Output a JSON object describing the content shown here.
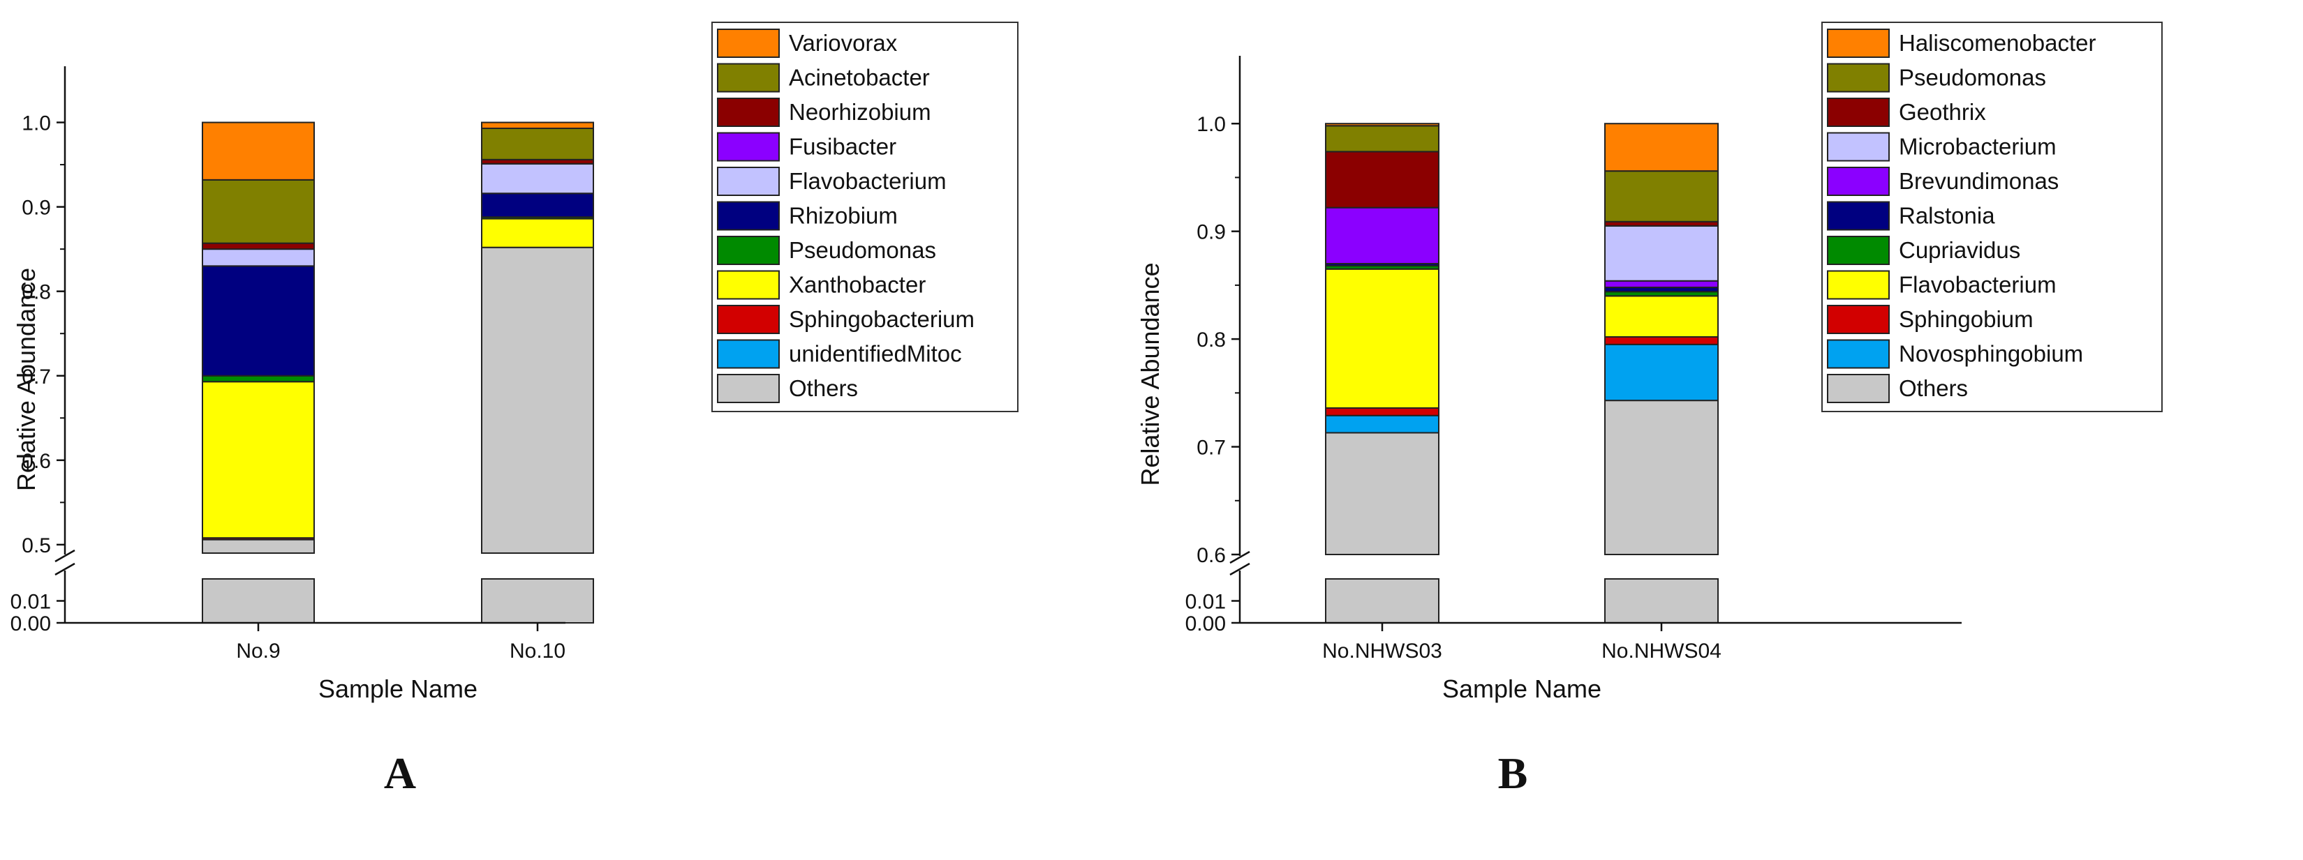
{
  "chart_data": [
    {
      "type": "bar",
      "stacked": true,
      "panel_label": "A",
      "xlabel": "Sample Name",
      "ylabel": "Relative Abundance",
      "categories": [
        "No.9",
        "No.10"
      ],
      "axis_break": {
        "lower_range": [
          0,
          0.02
        ],
        "upper_range": [
          0.49,
          1.05
        ]
      },
      "lower_ticks": [
        0,
        0.01
      ],
      "upper_ticks": [
        0.5,
        0.6,
        0.7,
        0.8,
        0.9,
        1.0
      ],
      "series": [
        {
          "name": "Others",
          "color": "#c8c8c8",
          "values": [
            0.506,
            0.852
          ]
        },
        {
          "name": "unidentifiedMitoc",
          "color": "#00a2f0",
          "values": [
            0.0,
            0.0
          ]
        },
        {
          "name": "Sphingobacterium",
          "color": "#d20000",
          "values": [
            0.002,
            0.0
          ]
        },
        {
          "name": "Xanthobacter",
          "color": "#ffff00",
          "values": [
            0.185,
            0.034
          ]
        },
        {
          "name": "Pseudomonas",
          "color": "#008a00",
          "values": [
            0.007,
            0.002
          ]
        },
        {
          "name": "Rhizobium",
          "color": "#000080",
          "values": [
            0.13,
            0.028
          ]
        },
        {
          "name": "Flavobacterium",
          "color": "#c2c2ff",
          "values": [
            0.02,
            0.035
          ]
        },
        {
          "name": "Fusibacter",
          "color": "#8b00ff",
          "values": [
            0.0,
            0.0
          ]
        },
        {
          "name": "Neorhizobium",
          "color": "#8b0000",
          "values": [
            0.007,
            0.005
          ]
        },
        {
          "name": "Acinetobacter",
          "color": "#808000",
          "values": [
            0.075,
            0.037
          ]
        },
        {
          "name": "Variovorax",
          "color": "#ff8000",
          "values": [
            0.068,
            0.007
          ]
        }
      ]
    },
    {
      "type": "bar",
      "stacked": true,
      "panel_label": "B",
      "xlabel": "Sample Name",
      "ylabel": "Relative Abundance",
      "categories": [
        "No.NHWS03",
        "No.NHWS04"
      ],
      "axis_break": {
        "lower_range": [
          0,
          0.02
        ],
        "upper_range": [
          0.6,
          1.05
        ]
      },
      "lower_ticks": [
        0,
        0.01
      ],
      "upper_ticks": [
        0.6,
        0.7,
        0.8,
        0.9,
        1.0
      ],
      "series": [
        {
          "name": "Others",
          "color": "#c8c8c8",
          "values": [
            0.713,
            0.743
          ]
        },
        {
          "name": "Novosphingobium",
          "color": "#00a2f0",
          "values": [
            0.016,
            0.052
          ]
        },
        {
          "name": "Sphingobium",
          "color": "#d20000",
          "values": [
            0.007,
            0.007
          ]
        },
        {
          "name": "Flavobacterium",
          "color": "#ffff00",
          "values": [
            0.129,
            0.038
          ]
        },
        {
          "name": "Cupriavidus",
          "color": "#008a00",
          "values": [
            0.003,
            0.004
          ]
        },
        {
          "name": "Ralstonia",
          "color": "#000080",
          "values": [
            0.002,
            0.004
          ]
        },
        {
          "name": "Brevundimonas",
          "color": "#8b00ff",
          "values": [
            0.052,
            0.006
          ]
        },
        {
          "name": "Microbacterium",
          "color": "#c2c2ff",
          "values": [
            0.0,
            0.051
          ]
        },
        {
          "name": "Geothrix",
          "color": "#8b0000",
          "values": [
            0.052,
            0.004
          ]
        },
        {
          "name": "Pseudomonas",
          "color": "#808000",
          "values": [
            0.024,
            0.047
          ]
        },
        {
          "name": "Haliscomenobacter",
          "color": "#ff8000",
          "values": [
            0.002,
            0.044
          ]
        }
      ]
    }
  ]
}
